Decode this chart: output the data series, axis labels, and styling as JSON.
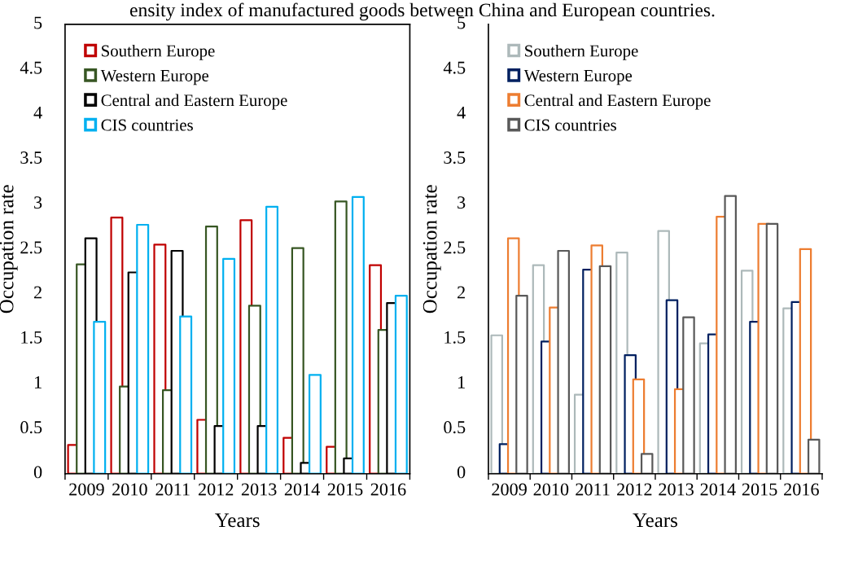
{
  "chart_data": [
    {
      "type": "bar",
      "title": "ensity index of manufactured goods between China and European countries.",
      "xlabel": "Years",
      "ylabel": "Occupation rate",
      "categories": [
        "2009",
        "2010",
        "2011",
        "2012",
        "2013",
        "2014",
        "2015",
        "2016"
      ],
      "series": [
        {
          "name": "Southern Europe",
          "color": "#c00000",
          "values": [
            0.32,
            2.85,
            2.55,
            0.6,
            2.82,
            0.4,
            0.3,
            2.32
          ]
        },
        {
          "name": "Western Europe",
          "color": "#375623",
          "values": [
            2.33,
            0.97,
            0.93,
            2.75,
            1.87,
            2.51,
            3.03,
            1.6
          ]
        },
        {
          "name": "Central and Eastern Europe",
          "color": "#000000",
          "values": [
            2.62,
            2.24,
            2.48,
            0.53,
            0.53,
            0.12,
            0.17,
            1.9
          ]
        },
        {
          "name": "CIS countries",
          "color": "#00b0f0",
          "values": [
            1.69,
            2.77,
            1.75,
            2.39,
            2.97,
            1.1,
            3.08,
            1.98
          ]
        }
      ],
      "ylim": [
        0,
        5
      ],
      "yticks": [
        0,
        0.5,
        1,
        1.5,
        2,
        2.5,
        3,
        3.5,
        4,
        4.5,
        5
      ],
      "grid": false,
      "legend": "top left"
    },
    {
      "type": "bar",
      "xlabel": "Years",
      "ylabel": "Occupation rate",
      "categories": [
        "2009",
        "2010",
        "2011",
        "2012",
        "2013",
        "2014",
        "2015",
        "2016"
      ],
      "series": [
        {
          "name": "Southern Europe",
          "color": "#adb9ba",
          "values": [
            1.54,
            2.32,
            0.88,
            2.46,
            2.7,
            1.45,
            2.26,
            1.84
          ]
        },
        {
          "name": "Western Europe",
          "color": "#002060",
          "values": [
            0.33,
            1.47,
            2.27,
            1.32,
            1.93,
            1.55,
            1.69,
            1.91
          ]
        },
        {
          "name": "Central and Eastern Europe",
          "color": "#ed7d31",
          "values": [
            2.62,
            1.85,
            2.54,
            1.05,
            0.94,
            2.86,
            2.78,
            2.5
          ]
        },
        {
          "name": "CIS countries",
          "color": "#595959",
          "values": [
            1.98,
            2.48,
            2.31,
            0.22,
            1.74,
            3.09,
            2.78,
            0.38
          ]
        }
      ],
      "ylim": [
        0,
        5
      ],
      "yticks": [
        0,
        0.5,
        1,
        1.5,
        2,
        2.5,
        3,
        3.5,
        4,
        4.5,
        5
      ],
      "grid": false,
      "legend": "top left"
    }
  ]
}
